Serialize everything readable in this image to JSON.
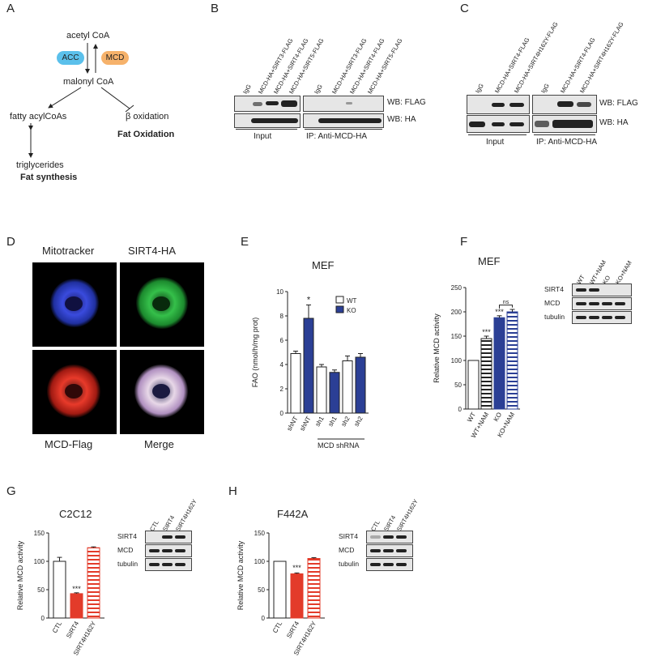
{
  "panelA": {
    "letter": "A",
    "acetyl": "acetyl CoA",
    "acc": "ACC",
    "mcd": "MCD",
    "malonyl": "malonyl CoA",
    "fatty": "fatty acylCoAs",
    "beta": "β oxidation",
    "fatox": "Fat Oxidation",
    "tg": "triglycerides",
    "fatsyn": "Fat synthesis",
    "colors": {
      "acc": "#5bc0eb",
      "mcd": "#f6b26b"
    }
  },
  "panelB": {
    "letter": "B",
    "lanes_input": [
      "IgG",
      "MCD-HA+SIRT3-FLAG",
      "MCD-HA+SIRT4-FLAG",
      "MCD-HA+SIRT5-FLAG"
    ],
    "lanes_ip": [
      "IgG",
      "MCD-HA+SIRT3-FLAG",
      "MCD-HA+SIRT4-FLAG",
      "MCD-HA+SIRT5-FLAG"
    ],
    "wb1": "WB: FLAG",
    "wb2": "WB: HA",
    "input": "Input",
    "ip": "IP: Anti-MCD-HA"
  },
  "panelC": {
    "letter": "C",
    "lanes_input": [
      "IgG",
      "MCD-HA+SIRT4-FLAG",
      "MCD-HA+SIRT4H162Y-FLAG"
    ],
    "lanes_ip": [
      "IgG",
      "MCD-HA+SIRT4-FLAG",
      "MCD-HA+SIRT4H162Y-FLAG"
    ],
    "wb1": "WB: FLAG",
    "wb2": "WB: HA",
    "input": "Input",
    "ip": "IP: Anti-MCD-HA"
  },
  "panelD": {
    "letter": "D",
    "mitotracker": "Mitotracker",
    "sirt4": "SIRT4-HA",
    "mcdflag": "MCD-Flag",
    "merge": "Merge"
  },
  "panelE": {
    "letter": "E",
    "chart_data": {
      "type": "bar",
      "title": "MEF",
      "ylabel": "FAO (nmol/h/mg prot)",
      "ylim": [
        0,
        10
      ],
      "yticks": [
        0,
        2,
        4,
        6,
        8,
        10
      ],
      "categories": [
        "shNT",
        "shNT",
        "sh1",
        "sh1",
        "sh2",
        "sh2"
      ],
      "values": [
        4.9,
        7.8,
        3.8,
        3.35,
        4.3,
        4.6
      ],
      "errors": [
        0.2,
        1.1,
        0.2,
        0.2,
        0.4,
        0.3
      ],
      "groups": [
        "WT",
        "KO",
        "WT",
        "KO",
        "WT",
        "KO"
      ],
      "legend": [
        "WT",
        "KO"
      ],
      "annotation": "*",
      "group_label": "MCD shRNA",
      "colors": {
        "WT": "#ffffff",
        "KO": "#2b3f95"
      }
    }
  },
  "panelF": {
    "letter": "F",
    "chart_data": {
      "type": "bar",
      "title": "MEF",
      "ylabel": "Relative MCD activity",
      "ylim": [
        0,
        250
      ],
      "yticks": [
        0,
        50,
        100,
        150,
        200,
        250
      ],
      "categories": [
        "WT",
        "WT+NAM",
        "KO",
        "KO+NAM"
      ],
      "values": [
        100,
        145,
        188,
        200
      ],
      "errors": [
        0,
        5,
        4,
        5
      ],
      "annotations": [
        "***",
        "***"
      ],
      "ns": "ns"
    },
    "blot_lanes": [
      "WT",
      "WT+NAM",
      "KO",
      "KO+NAM"
    ],
    "blot_rows": [
      "SIRT4",
      "MCD",
      "tubulin"
    ]
  },
  "panelG": {
    "letter": "G",
    "chart_data": {
      "type": "bar",
      "title": "C2C12",
      "ylabel": "Relative MCD activity",
      "ylim": [
        0,
        150
      ],
      "yticks": [
        0,
        50,
        100,
        150
      ],
      "categories": [
        "CTL",
        "SIRT4",
        "SIRT4H162Y"
      ],
      "values": [
        100,
        43,
        124
      ],
      "errors": [
        7,
        1.5,
        1.5
      ],
      "annotation": "***"
    },
    "blot_lanes": [
      "CTL",
      "SIRT4",
      "SIRT4H162Y"
    ],
    "blot_rows": [
      "SIRT4",
      "MCD",
      "tubulin"
    ]
  },
  "panelH": {
    "letter": "H",
    "chart_data": {
      "type": "bar",
      "title": "F442A",
      "ylabel": "Relative MCD activity",
      "ylim": [
        0,
        150
      ],
      "yticks": [
        0,
        50,
        100,
        150
      ],
      "categories": [
        "CTL",
        "SIRT4",
        "SIRT4H162Y"
      ],
      "values": [
        100,
        78,
        105
      ],
      "errors": [
        0,
        1.5,
        1.5
      ],
      "annotation": "***"
    },
    "blot_lanes": [
      "CTL",
      "SIRT4",
      "SIRT4H162Y"
    ],
    "blot_rows": [
      "SIRT4",
      "MCD",
      "tubulin"
    ]
  }
}
